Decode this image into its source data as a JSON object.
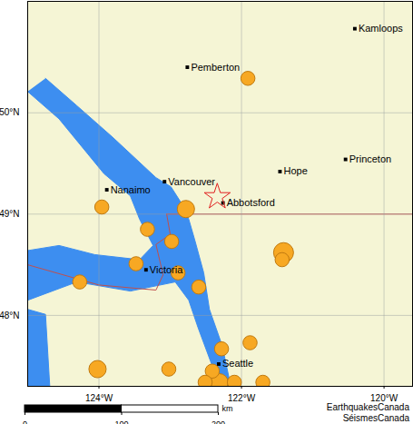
{
  "chart_data": {
    "type": "map",
    "xlim": [
      -125,
      -119.6
    ],
    "ylim": [
      47.3,
      51.1
    ],
    "xticks": [
      {
        "value": -124,
        "label": "124°W"
      },
      {
        "value": -122,
        "label": "122°W"
      },
      {
        "value": -120,
        "label": "120°W"
      }
    ],
    "yticks": [
      {
        "value": 48,
        "label": "48°N"
      },
      {
        "value": 49,
        "label": "49°N"
      },
      {
        "value": 50,
        "label": "50°N"
      }
    ],
    "grid": true,
    "color": "#f5f5d5",
    "cities": [
      {
        "name": "Kamloops",
        "lon": -120.41,
        "lat": 50.83
      },
      {
        "name": "Pemberton",
        "lon": -122.76,
        "lat": 50.45
      },
      {
        "name": "Vancouver",
        "lon": -123.08,
        "lat": 49.32
      },
      {
        "name": "Nanaimo",
        "lon": -123.89,
        "lat": 49.24
      },
      {
        "name": "Abbotsford",
        "lon": -122.26,
        "lat": 49.11
      },
      {
        "name": "Hope",
        "lon": -121.46,
        "lat": 49.42
      },
      {
        "name": "Princeton",
        "lon": -120.54,
        "lat": 49.54
      },
      {
        "name": "Victoria",
        "lon": -123.34,
        "lat": 48.45
      },
      {
        "name": "Seattle",
        "lon": -122.32,
        "lat": 47.52
      }
    ],
    "epicenter": {
      "lon": -122.34,
      "lat": 49.17,
      "color": "#e02020",
      "marker": "star"
    },
    "earthquakes": {
      "color": "#f7a823",
      "lon": [
        -121.91,
        -123.96,
        -122.78,
        -123.32,
        -122.98,
        -123.48,
        -122.89,
        -124.27,
        -122.6,
        -121.41,
        -121.43,
        -122.28,
        -121.88,
        -124.02,
        -123.02,
        -122.41,
        -122.51,
        -122.31,
        -122.1,
        -121.7
      ],
      "lat": [
        50.34,
        49.07,
        49.05,
        48.85,
        48.73,
        48.51,
        48.42,
        48.33,
        48.28,
        48.62,
        48.55,
        47.67,
        47.73,
        47.47,
        47.47,
        47.45,
        47.34,
        47.34,
        47.34,
        47.34
      ],
      "size": [
        2,
        2,
        3,
        2,
        2,
        2,
        2,
        2,
        2,
        4,
        2,
        2,
        2,
        3,
        2,
        2,
        2,
        3,
        2,
        2
      ]
    },
    "water": {
      "color": "#3d8ef0",
      "polygons": [
        [
          [
            -125.0,
            50.21
          ],
          [
            -124.56,
            49.94
          ],
          [
            -123.93,
            49.4
          ],
          [
            -123.56,
            49.18
          ],
          [
            -123.43,
            48.95
          ],
          [
            -123.24,
            48.69
          ],
          [
            -123.43,
            48.55
          ],
          [
            -124.06,
            48.6
          ],
          [
            -124.56,
            48.69
          ],
          [
            -125.0,
            48.64
          ],
          [
            -125.0,
            48.15
          ],
          [
            -124.31,
            48.33
          ],
          [
            -123.56,
            48.24
          ],
          [
            -122.93,
            48.33
          ],
          [
            -122.74,
            48.15
          ],
          [
            -122.61,
            47.88
          ],
          [
            -122.42,
            47.52
          ],
          [
            -122.3,
            47.3
          ],
          [
            -122.15,
            47.3
          ],
          [
            -122.27,
            47.7
          ],
          [
            -122.45,
            48.06
          ],
          [
            -122.53,
            48.42
          ],
          [
            -122.65,
            48.73
          ],
          [
            -122.74,
            48.95
          ],
          [
            -122.8,
            49.06
          ],
          [
            -122.99,
            49.27
          ],
          [
            -123.2,
            49.36
          ],
          [
            -123.81,
            49.76
          ],
          [
            -124.31,
            50.07
          ],
          [
            -124.75,
            50.34
          ]
        ],
        [
          [
            -125.0,
            48.06
          ],
          [
            -124.75,
            48.01
          ],
          [
            -124.69,
            47.3
          ],
          [
            -125.0,
            47.3
          ]
        ]
      ]
    },
    "borders": {
      "color": "#c0504d",
      "lines": [
        [
          [
            -123.05,
            49.0
          ],
          [
            -119.6,
            49.0
          ]
        ],
        [
          [
            -125.0,
            48.5
          ],
          [
            -124.0,
            48.3
          ],
          [
            -123.2,
            48.25
          ],
          [
            -123.1,
            48.4
          ],
          [
            -123.2,
            48.7
          ],
          [
            -123.0,
            48.8
          ],
          [
            -123.05,
            49.0
          ]
        ]
      ]
    },
    "scale_bar": {
      "xlim": [
        0,
        200
      ],
      "ticks": [
        0,
        100,
        200
      ],
      "unit": "km"
    },
    "credits": [
      "EarthquakesCanada",
      "SéismesCanada"
    ]
  }
}
